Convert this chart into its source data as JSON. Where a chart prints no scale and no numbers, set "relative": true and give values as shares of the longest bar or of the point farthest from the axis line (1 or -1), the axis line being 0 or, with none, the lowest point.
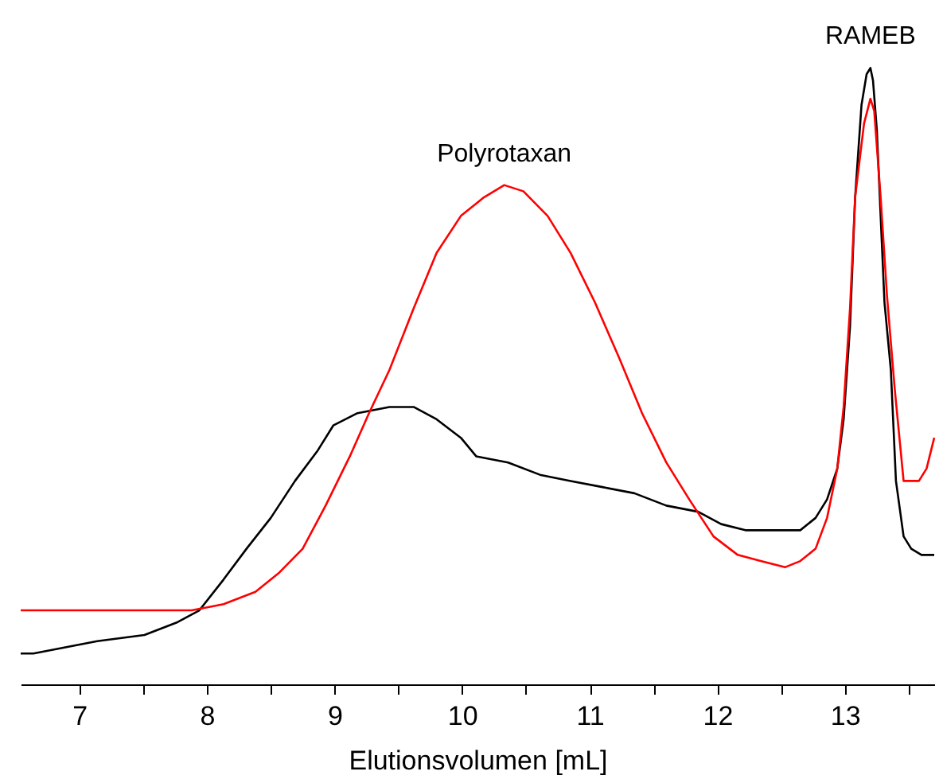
{
  "chart_data": {
    "type": "line",
    "relative": true,
    "xlabel": "Elutionsvolumen [mL]",
    "xlim": [
      6.54,
      13.7
    ],
    "xticks": [
      7,
      {
        "value": 7.5,
        "label": null
      },
      8,
      {
        "value": 8.5,
        "label": null
      },
      9,
      {
        "value": 9.5,
        "label": null
      },
      10,
      {
        "value": 10.5,
        "label": null
      },
      11,
      {
        "value": 11.5,
        "label": null
      },
      12,
      {
        "value": 12.5,
        "label": null
      },
      13,
      {
        "value": 13.5,
        "label": null
      }
    ],
    "tick_labels": "x",
    "grid": false,
    "marker": "none",
    "line_style": "solid",
    "annotations": [
      {
        "text": "Polyrotaxan",
        "x": 10.33,
        "y": 0.81
      },
      {
        "text": "RAMEB",
        "x": 13.2,
        "y": 1
      }
    ],
    "series": [
      {
        "color": "#000000",
        "x": [
          6.54,
          6.64,
          6.89,
          7.14,
          7.51,
          7.76,
          7.94,
          8.13,
          8.31,
          8.5,
          8.69,
          8.87,
          8.99,
          9.18,
          9.43,
          9.62,
          9.8,
          9.99,
          10.11,
          10.36,
          10.61,
          10.85,
          11.1,
          11.35,
          11.6,
          11.85,
          12.03,
          12.22,
          12.46,
          12.65,
          12.77,
          12.86,
          12.94,
          12.99,
          13.04,
          13.08,
          13.13,
          13.17,
          13.2,
          13.22,
          13.25,
          13.28,
          13.31,
          13.36,
          13.4,
          13.46,
          13.52,
          13.6,
          13.7
        ],
        "values": [
          0.05,
          0.05,
          0.06,
          0.07,
          0.08,
          0.1,
          0.12,
          0.17,
          0.22,
          0.27,
          0.33,
          0.38,
          0.42,
          0.44,
          0.45,
          0.45,
          0.43,
          0.4,
          0.37,
          0.36,
          0.34,
          0.33,
          0.32,
          0.31,
          0.29,
          0.28,
          0.26,
          0.25,
          0.25,
          0.25,
          0.27,
          0.3,
          0.35,
          0.43,
          0.58,
          0.79,
          0.94,
          0.99,
          1,
          0.98,
          0.9,
          0.76,
          0.62,
          0.51,
          0.33,
          0.24,
          0.22,
          0.21,
          0.21
        ]
      },
      {
        "color": "#ff0000",
        "x": [
          6.54,
          7.14,
          7.63,
          7.88,
          8.13,
          8.38,
          8.56,
          8.75,
          8.93,
          9.12,
          9.27,
          9.43,
          9.62,
          9.8,
          9.99,
          10.17,
          10.33,
          10.48,
          10.67,
          10.85,
          11.04,
          11.23,
          11.41,
          11.6,
          11.78,
          11.97,
          12.16,
          12.34,
          12.53,
          12.65,
          12.77,
          12.86,
          12.94,
          12.99,
          13.04,
          13.08,
          13.15,
          13.2,
          13.23,
          13.28,
          13.33,
          13.39,
          13.46,
          13.52,
          13.58,
          13.64,
          13.7
        ],
        "values": [
          0.12,
          0.12,
          0.12,
          0.12,
          0.13,
          0.15,
          0.18,
          0.22,
          0.29,
          0.37,
          0.44,
          0.51,
          0.61,
          0.7,
          0.76,
          0.79,
          0.81,
          0.8,
          0.76,
          0.7,
          0.62,
          0.53,
          0.44,
          0.36,
          0.3,
          0.24,
          0.21,
          0.2,
          0.19,
          0.2,
          0.22,
          0.27,
          0.35,
          0.45,
          0.61,
          0.79,
          0.91,
          0.95,
          0.93,
          0.79,
          0.63,
          0.48,
          0.33,
          0.33,
          0.33,
          0.35,
          0.4
        ]
      }
    ]
  }
}
